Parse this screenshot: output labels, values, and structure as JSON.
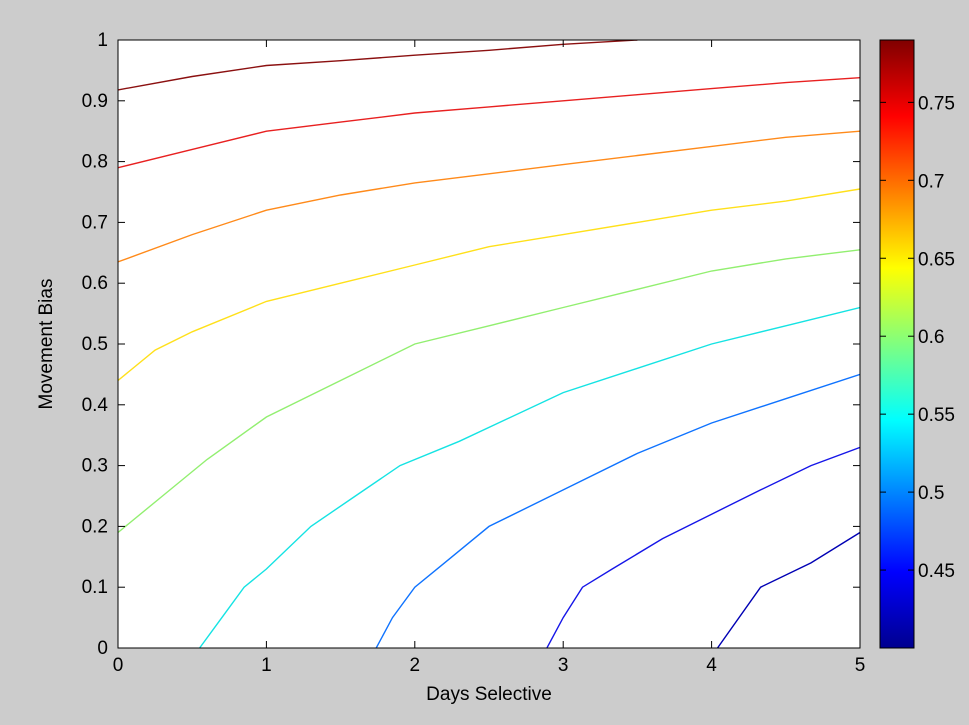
{
  "chart_data": {
    "type": "contour",
    "xlabel": "Days Selective",
    "ylabel": "Movement Bias",
    "xlim": [
      0,
      5
    ],
    "ylim": [
      0,
      1
    ],
    "xticks": [
      "0",
      "1",
      "2",
      "3",
      "4",
      "5"
    ],
    "yticks": [
      "0",
      "0.1",
      "0.2",
      "0.3",
      "0.4",
      "0.5",
      "0.6",
      "0.7",
      "0.8",
      "0.9",
      "1"
    ],
    "colorbar": {
      "colormap": "jet",
      "range": [
        0.4,
        0.79
      ],
      "tick_values": [
        0.45,
        0.5,
        0.55,
        0.6,
        0.65,
        0.7,
        0.75
      ],
      "tick_labels": [
        "0.45",
        "0.5",
        "0.55",
        "0.6",
        "0.65",
        "0.7",
        "0.75"
      ]
    },
    "contours": [
      {
        "level": 0.43,
        "color": "#0000b4",
        "x": [
          4.04,
          4.33,
          4.67,
          5.0
        ],
        "y": [
          0.0,
          0.1,
          0.14,
          0.19
        ]
      },
      {
        "level": 0.47,
        "color": "#1616e8",
        "x": [
          2.89,
          3.0,
          3.13,
          3.33,
          3.67,
          4.0,
          4.33,
          4.67,
          5.0
        ],
        "y": [
          0.0,
          0.05,
          0.1,
          0.13,
          0.18,
          0.22,
          0.26,
          0.3,
          0.33
        ]
      },
      {
        "level": 0.51,
        "color": "#0f73ff",
        "x": [
          1.74,
          1.85,
          2.0,
          2.2,
          2.5,
          3.0,
          3.5,
          4.0,
          4.5,
          5.0
        ],
        "y": [
          0.0,
          0.05,
          0.1,
          0.14,
          0.2,
          0.26,
          0.32,
          0.37,
          0.41,
          0.45
        ]
      },
      {
        "level": 0.55,
        "color": "#15e3e3",
        "x": [
          0.55,
          0.7,
          0.85,
          1.0,
          1.3,
          1.6,
          1.9,
          2.3,
          3.0,
          3.5,
          4.0,
          4.5,
          5.0
        ],
        "y": [
          0.0,
          0.05,
          0.1,
          0.13,
          0.2,
          0.25,
          0.3,
          0.34,
          0.42,
          0.46,
          0.5,
          0.53,
          0.56
        ]
      },
      {
        "level": 0.6,
        "color": "#92ef70",
        "x": [
          0.0,
          0.3,
          0.6,
          1.0,
          1.5,
          2.0,
          2.5,
          3.0,
          3.5,
          4.0,
          4.5,
          5.0
        ],
        "y": [
          0.19,
          0.25,
          0.31,
          0.38,
          0.44,
          0.5,
          0.53,
          0.56,
          0.59,
          0.62,
          0.64,
          0.655
        ]
      },
      {
        "level": 0.65,
        "color": "#ffe01a",
        "x": [
          0.0,
          0.25,
          0.5,
          1.0,
          1.5,
          2.0,
          2.5,
          3.0,
          3.5,
          4.0,
          4.5,
          5.0
        ],
        "y": [
          0.44,
          0.49,
          0.52,
          0.57,
          0.6,
          0.63,
          0.66,
          0.68,
          0.7,
          0.72,
          0.735,
          0.755
        ]
      },
      {
        "level": 0.7,
        "color": "#ff8a1a",
        "x": [
          0.0,
          0.5,
          1.0,
          1.5,
          2.0,
          2.5,
          3.0,
          3.5,
          4.0,
          4.5,
          5.0
        ],
        "y": [
          0.635,
          0.68,
          0.72,
          0.745,
          0.765,
          0.78,
          0.795,
          0.81,
          0.825,
          0.84,
          0.85
        ]
      },
      {
        "level": 0.75,
        "color": "#e82020",
        "x": [
          0.0,
          0.5,
          1.0,
          1.5,
          2.0,
          2.5,
          3.0,
          3.5,
          4.0,
          4.5,
          5.0
        ],
        "y": [
          0.79,
          0.82,
          0.85,
          0.865,
          0.88,
          0.89,
          0.9,
          0.91,
          0.92,
          0.93,
          0.938
        ]
      },
      {
        "level": 0.78,
        "color": "#8b1010",
        "x": [
          0.0,
          0.5,
          1.0,
          1.5,
          2.0,
          2.5,
          3.0,
          3.5
        ],
        "y": [
          0.918,
          0.94,
          0.958,
          0.966,
          0.975,
          0.983,
          0.993,
          1.0
        ]
      }
    ]
  }
}
